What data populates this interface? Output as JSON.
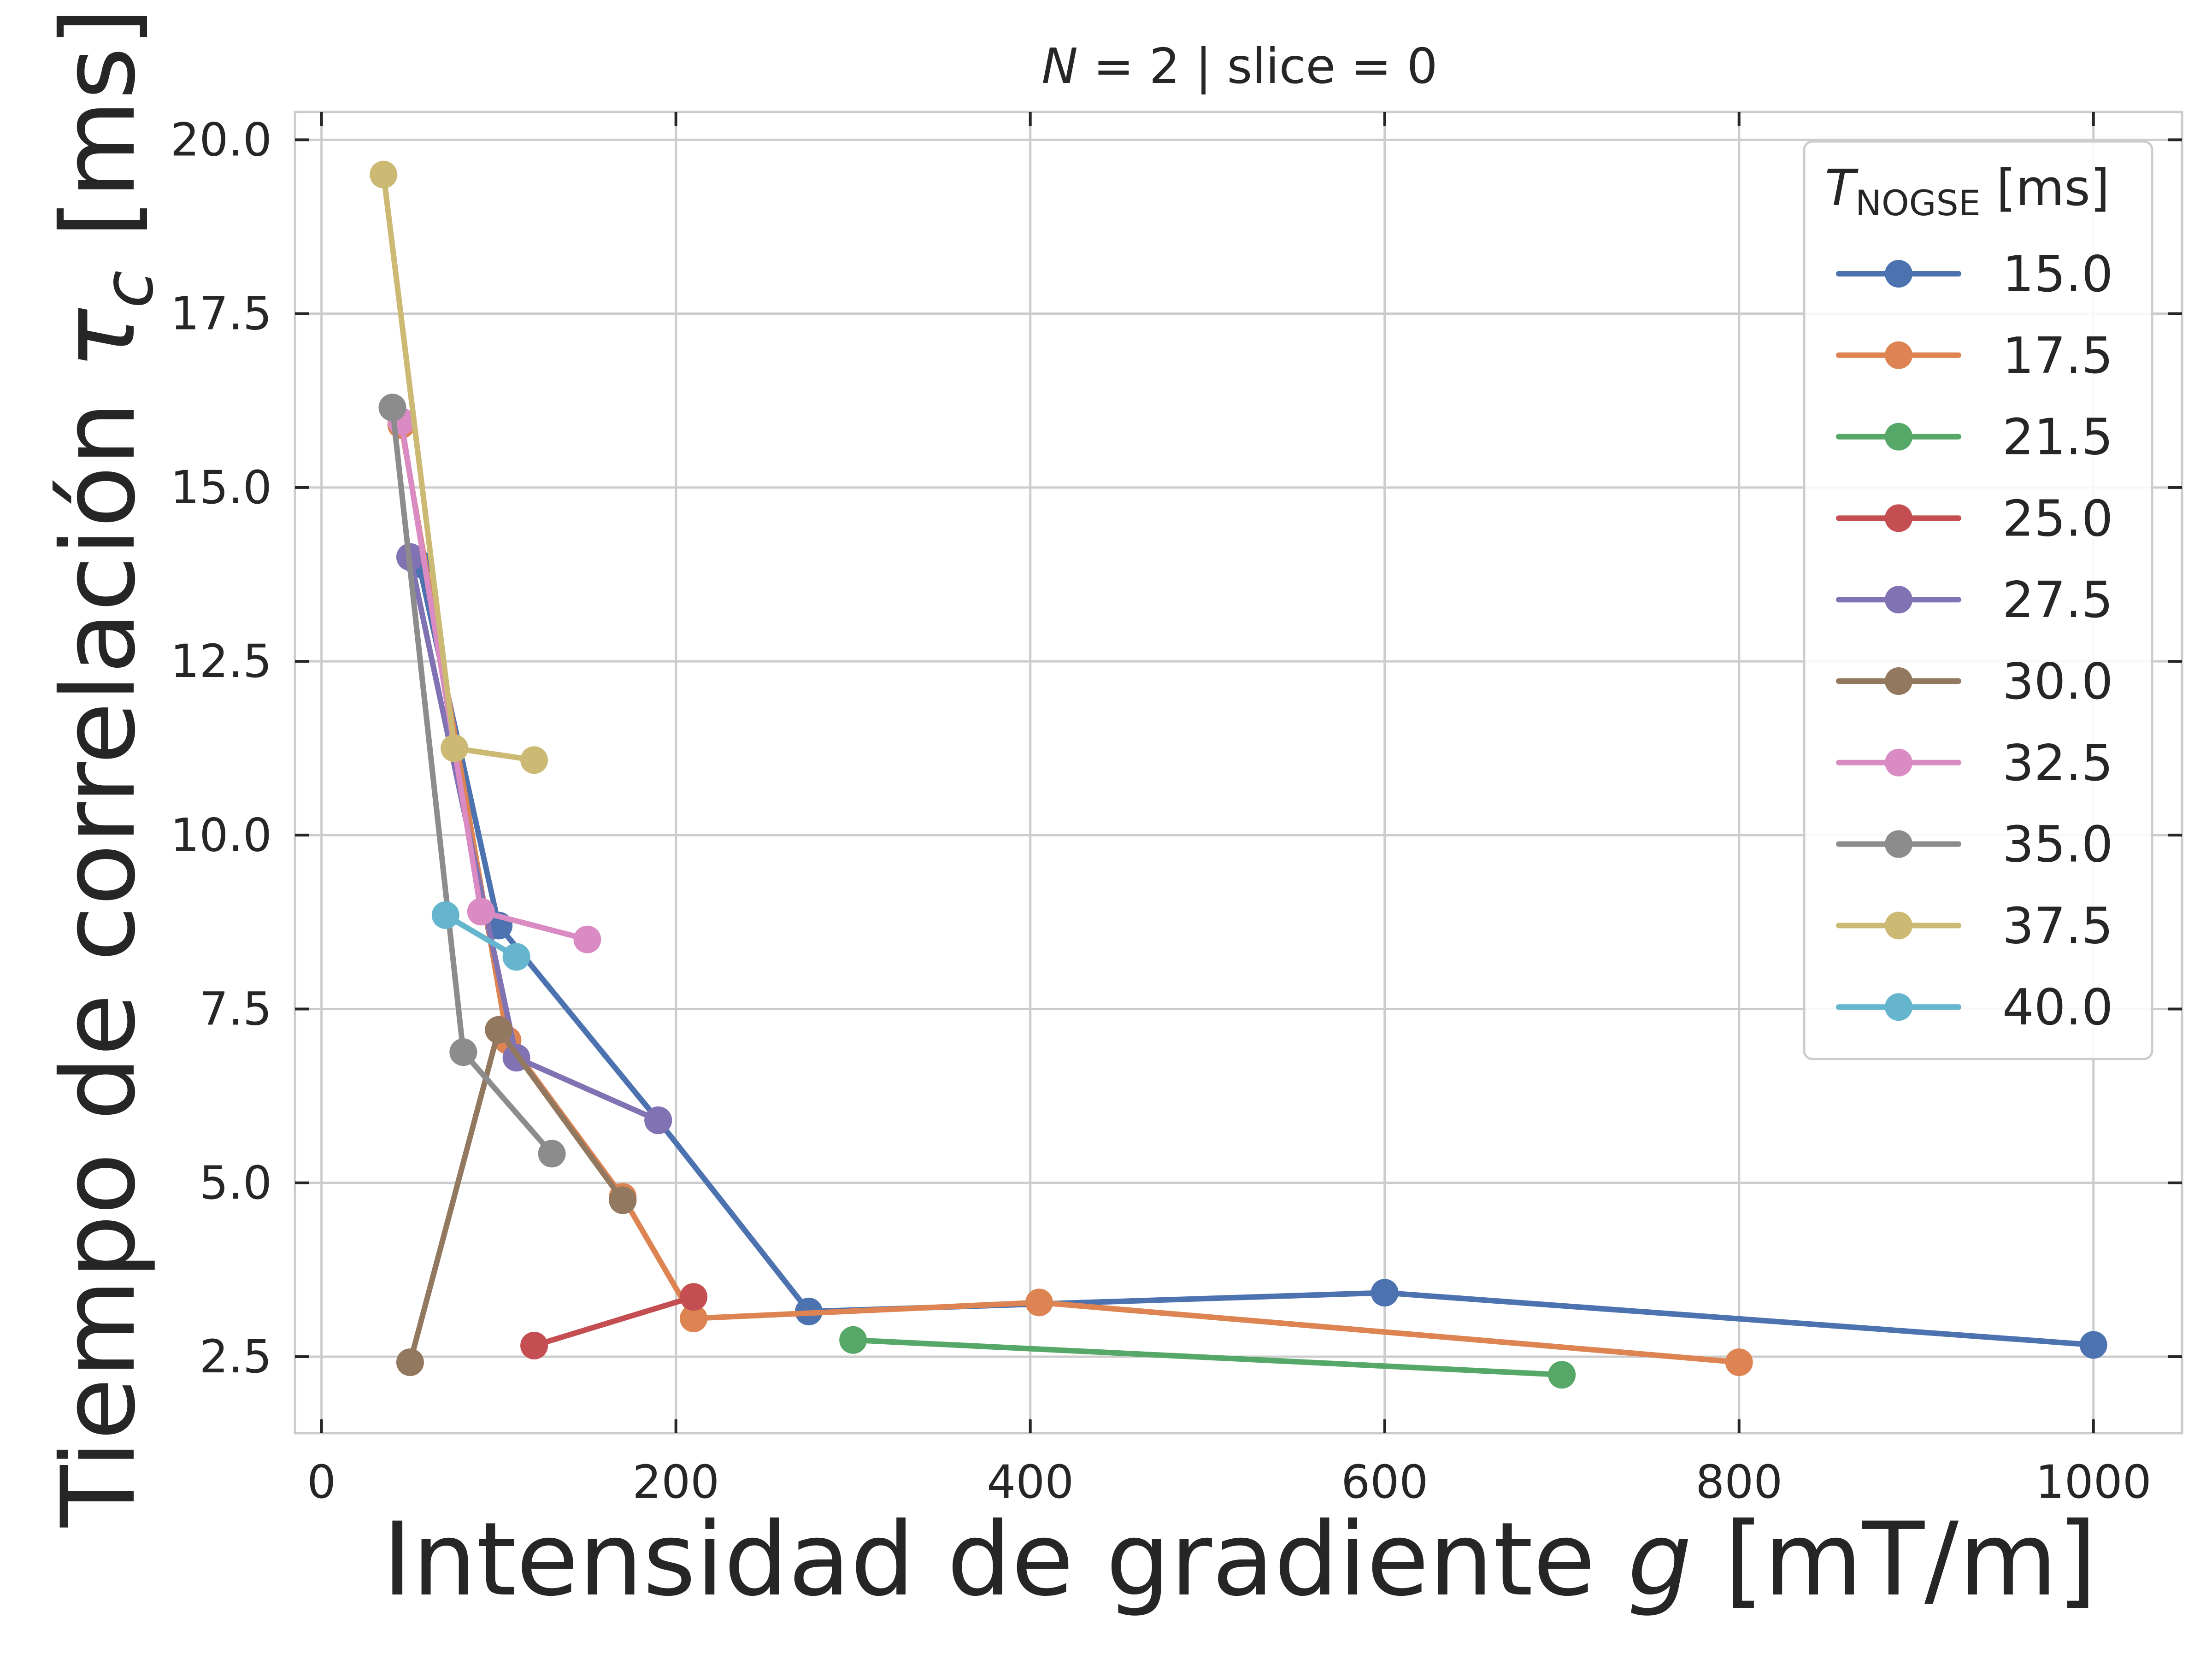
{
  "chart_data": {
    "type": "line",
    "title": {
      "var": "N",
      "rest": " = 2 | slice = 0"
    },
    "xlabel": {
      "text": "Intensidad de gradiente ",
      "var": "g",
      "unit": " [mT/m]"
    },
    "ylabel": {
      "text": "Tiempo de correlación ",
      "var": "τ",
      "sub": "c",
      "unit": " [ms]"
    },
    "xlim": [
      -15,
      1050
    ],
    "ylim": [
      1.4,
      20.4
    ],
    "xticks": [
      0,
      200,
      400,
      600,
      800,
      1000
    ],
    "yticks": [
      2.5,
      5.0,
      7.5,
      10.0,
      12.5,
      15.0,
      17.5,
      20.0
    ],
    "xtick_labels": [
      "0",
      "200",
      "400",
      "600",
      "800",
      "1000"
    ],
    "ytick_labels": [
      "2.5",
      "5.0",
      "7.5",
      "10.0",
      "12.5",
      "15.0",
      "17.5",
      "20.0"
    ],
    "grid": true,
    "legend": {
      "placement": "top-right",
      "title_var": "T",
      "title_sub": "NOGSE",
      "title_unit": " [ms]"
    },
    "series": [
      {
        "name": "15.0",
        "color": "#4c72b0",
        "x": [
          55,
          100,
          190,
          275,
          600,
          1000
        ],
        "y": [
          13.9,
          8.7,
          5.9,
          3.15,
          3.42,
          2.67
        ]
      },
      {
        "name": "17.5",
        "color": "#dd8452",
        "x": [
          45,
          105,
          170,
          210,
          405,
          800
        ],
        "y": [
          15.9,
          7.05,
          4.8,
          3.05,
          3.28,
          2.42
        ]
      },
      {
        "name": "21.5",
        "color": "#55a868",
        "x": [
          300,
          700
        ],
        "y": [
          2.74,
          2.24
        ]
      },
      {
        "name": "25.0",
        "color": "#c44e52",
        "x": [
          120,
          210
        ],
        "y": [
          2.66,
          3.36
        ]
      },
      {
        "name": "27.5",
        "color": "#8172b3",
        "x": [
          50,
          110,
          190
        ],
        "y": [
          14.0,
          6.8,
          5.9
        ]
      },
      {
        "name": "30.0",
        "color": "#937860",
        "x": [
          50,
          100,
          170
        ],
        "y": [
          2.42,
          7.2,
          4.75
        ]
      },
      {
        "name": "32.5",
        "color": "#da8bc3",
        "x": [
          45,
          90,
          150
        ],
        "y": [
          15.95,
          8.9,
          8.5
        ]
      },
      {
        "name": "35.0",
        "color": "#8c8c8c",
        "x": [
          40,
          80,
          130
        ],
        "y": [
          16.15,
          6.88,
          5.42
        ]
      },
      {
        "name": "37.5",
        "color": "#ccb974",
        "x": [
          35,
          75,
          120
        ],
        "y": [
          19.5,
          11.25,
          11.08
        ]
      },
      {
        "name": "40.0",
        "color": "#64b5cd",
        "x": [
          70,
          110
        ],
        "y": [
          8.85,
          8.25
        ]
      }
    ]
  }
}
